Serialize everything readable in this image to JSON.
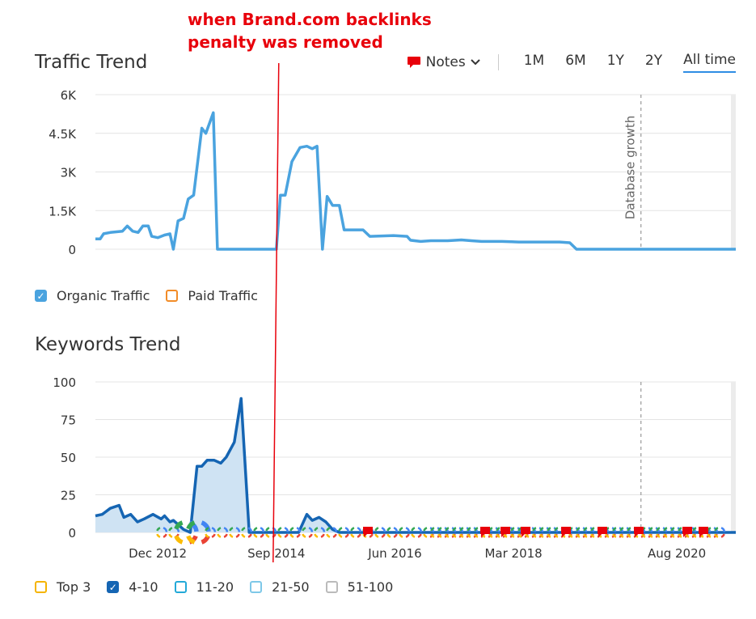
{
  "annotation": {
    "line1": "when Brand.com backlinks",
    "line2": "penalty was removed",
    "color": "#e8000b",
    "position_date": 2014.67
  },
  "traffic": {
    "title": "Traffic Trend",
    "notes_label": "Notes",
    "periods": [
      "1M",
      "6M",
      "1Y",
      "2Y",
      "All time"
    ],
    "active_period": "All time",
    "legend": [
      {
        "label": "Organic Traffic",
        "checked": true,
        "color": "#4aa3df"
      },
      {
        "label": "Paid Traffic",
        "checked": false,
        "color": "#f28c28"
      }
    ],
    "database_growth_label": "Database growth"
  },
  "keywords": {
    "title": "Keywords Trend",
    "legend": [
      {
        "label": "Top 3",
        "checked": false,
        "color": "#f5b400"
      },
      {
        "label": "4-10",
        "checked": true,
        "color": "#1565b3"
      },
      {
        "label": "11-20",
        "checked": false,
        "color": "#23a9d8"
      },
      {
        "label": "21-50",
        "checked": false,
        "color": "#7ec8e8"
      },
      {
        "label": "51-100",
        "checked": false,
        "color": "#bbbbbb"
      }
    ]
  },
  "chart_data": [
    {
      "type": "line",
      "title": "Traffic Trend",
      "series": [
        {
          "name": "Organic Traffic",
          "color": "#4aa3df",
          "points": [
            [
              2012.0,
              400
            ],
            [
              2012.07,
              400
            ],
            [
              2012.12,
              600
            ],
            [
              2012.22,
              650
            ],
            [
              2012.4,
              700
            ],
            [
              2012.47,
              900
            ],
            [
              2012.55,
              700
            ],
            [
              2012.63,
              650
            ],
            [
              2012.7,
              900
            ],
            [
              2012.78,
              900
            ],
            [
              2012.83,
              500
            ],
            [
              2012.92,
              450
            ],
            [
              2013.02,
              550
            ],
            [
              2013.1,
              600
            ],
            [
              2013.15,
              0
            ],
            [
              2013.22,
              1100
            ],
            [
              2013.3,
              1200
            ],
            [
              2013.37,
              1950
            ],
            [
              2013.45,
              2100
            ],
            [
              2013.57,
              4700
            ],
            [
              2013.63,
              4500
            ],
            [
              2013.74,
              5300
            ],
            [
              2013.8,
              0
            ],
            [
              2014.67,
              0
            ],
            [
              2014.73,
              2100
            ],
            [
              2014.8,
              2100
            ],
            [
              2014.9,
              3400
            ],
            [
              2015.02,
              3950
            ],
            [
              2015.12,
              4000
            ],
            [
              2015.2,
              3900
            ],
            [
              2015.27,
              4000
            ],
            [
              2015.35,
              0
            ],
            [
              2015.42,
              2050
            ],
            [
              2015.5,
              1700
            ],
            [
              2015.6,
              1700
            ],
            [
              2015.67,
              750
            ],
            [
              2015.95,
              750
            ],
            [
              2016.05,
              500
            ],
            [
              2016.4,
              530
            ],
            [
              2016.6,
              500
            ],
            [
              2016.65,
              350
            ],
            [
              2016.8,
              300
            ],
            [
              2016.95,
              330
            ],
            [
              2017.2,
              330
            ],
            [
              2017.4,
              360
            ],
            [
              2017.55,
              330
            ],
            [
              2017.7,
              300
            ],
            [
              2018.0,
              300
            ],
            [
              2018.25,
              280
            ],
            [
              2018.6,
              280
            ],
            [
              2018.85,
              280
            ],
            [
              2019.0,
              250
            ],
            [
              2019.1,
              0
            ],
            [
              2021.45,
              0
            ]
          ]
        }
      ],
      "xlim": [
        2012.0,
        2021.45
      ],
      "ylim": [
        0,
        6000
      ],
      "y_ticks": [
        0,
        1500,
        3000,
        4500,
        6000
      ],
      "y_tick_labels": [
        "0",
        "1.5K",
        "3K",
        "4.5K",
        "6K"
      ],
      "grid": true,
      "vertical_marker": {
        "label": "Database growth",
        "x": 2020.05
      },
      "legend_position": "bottom-left"
    },
    {
      "type": "area",
      "title": "Keywords Trend",
      "series": [
        {
          "name": "4-10",
          "color": "#1565b3",
          "fill": "#cfe3f3",
          "points": [
            [
              2012.0,
              11
            ],
            [
              2012.1,
              12
            ],
            [
              2012.22,
              16
            ],
            [
              2012.35,
              18
            ],
            [
              2012.42,
              10
            ],
            [
              2012.52,
              12
            ],
            [
              2012.62,
              7
            ],
            [
              2012.72,
              9
            ],
            [
              2012.85,
              12
            ],
            [
              2012.97,
              9
            ],
            [
              2013.02,
              11
            ],
            [
              2013.1,
              7
            ],
            [
              2013.15,
              8
            ],
            [
              2013.3,
              2
            ],
            [
              2013.4,
              0
            ],
            [
              2013.5,
              44
            ],
            [
              2013.57,
              44
            ],
            [
              2013.65,
              48
            ],
            [
              2013.75,
              48
            ],
            [
              2013.85,
              46
            ],
            [
              2013.93,
              50
            ],
            [
              2014.05,
              60
            ],
            [
              2014.15,
              89
            ],
            [
              2014.27,
              0
            ],
            [
              2014.62,
              0
            ],
            [
              2015.0,
              0
            ],
            [
              2015.12,
              12
            ],
            [
              2015.2,
              8
            ],
            [
              2015.3,
              10
            ],
            [
              2015.4,
              7
            ],
            [
              2015.5,
              2
            ],
            [
              2015.6,
              0
            ],
            [
              2021.45,
              0
            ]
          ]
        }
      ],
      "xlim": [
        2012.0,
        2021.45
      ],
      "ylim": [
        0,
        100
      ],
      "y_ticks": [
        0,
        25,
        50,
        75,
        100
      ],
      "x_ticks": [
        {
          "label": "Dec 2012",
          "x": 2012.92
        },
        {
          "label": "Sep 2014",
          "x": 2014.67
        },
        {
          "label": "Jun 2016",
          "x": 2016.42
        },
        {
          "label": "Mar 2018",
          "x": 2018.17
        },
        {
          "label": "Aug 2020",
          "x": 2020.58
        }
      ],
      "grid": true,
      "vertical_marker": {
        "x": 2020.05
      },
      "legend_position": "bottom-left"
    }
  ]
}
